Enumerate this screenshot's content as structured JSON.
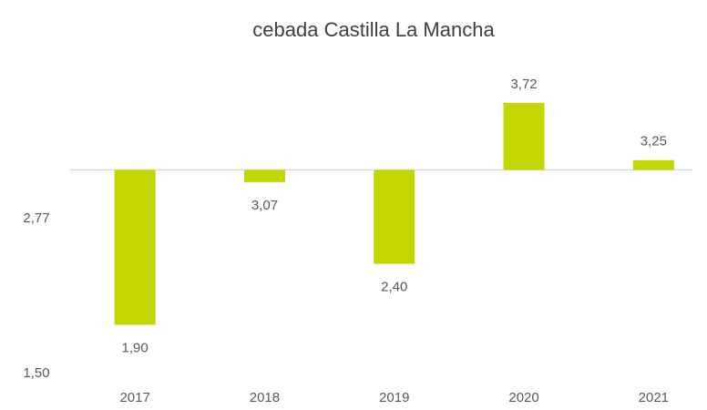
{
  "chart_data": {
    "type": "bar",
    "title": "cebada Castilla La Mancha",
    "categories": [
      "2017",
      "2018",
      "2019",
      "2020",
      "2021"
    ],
    "values": [
      1.9,
      3.07,
      2.4,
      3.72,
      3.25
    ],
    "value_labels": [
      "1,90",
      "3,07",
      "2,40",
      "3,72",
      "3,25"
    ],
    "color": "#c2d600",
    "ylim": [
      1.5,
      4.1
    ],
    "yticks": [
      {
        "value": 1.5,
        "label": "1,50"
      },
      {
        "value": 2.77,
        "label": "2,77"
      }
    ],
    "origin": 3.17,
    "grid": false
  }
}
